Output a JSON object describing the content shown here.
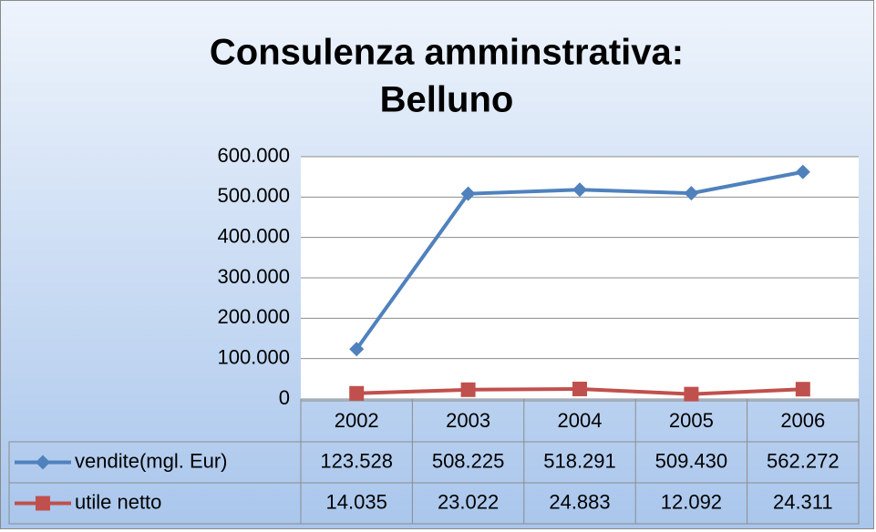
{
  "chart_data": {
    "type": "line",
    "title": "Consulenza amminstrativa:",
    "subtitle": "Belluno",
    "categories": [
      "2002",
      "2003",
      "2004",
      "2005",
      "2006"
    ],
    "series": [
      {
        "name": "vendite(mgl. Eur)",
        "color": "#4f81bd",
        "marker": "diamond",
        "values": [
          123528,
          508225,
          518291,
          509430,
          562272
        ],
        "value_labels": [
          "123.528",
          "508.225",
          "518.291",
          "509.430",
          "562.272"
        ]
      },
      {
        "name": "utile netto",
        "color": "#c0504d",
        "marker": "square",
        "values": [
          14035,
          23022,
          24883,
          12092,
          24311
        ],
        "value_labels": [
          "14.035",
          "23.022",
          "24.883",
          "12.092",
          "24.311"
        ]
      }
    ],
    "ylim": [
      0,
      600000
    ],
    "yticks": [
      0,
      {
        "value": 100000,
        "label": "100.000"
      },
      {
        "value": 200000,
        "label": "200.000"
      },
      {
        "value": 300000,
        "label": "300.000"
      },
      {
        "value": 400000,
        "label": "400.000"
      },
      {
        "value": 500000,
        "label": "500.000"
      },
      {
        "value": 600000,
        "label": "600.000"
      }
    ],
    "grid": true
  }
}
